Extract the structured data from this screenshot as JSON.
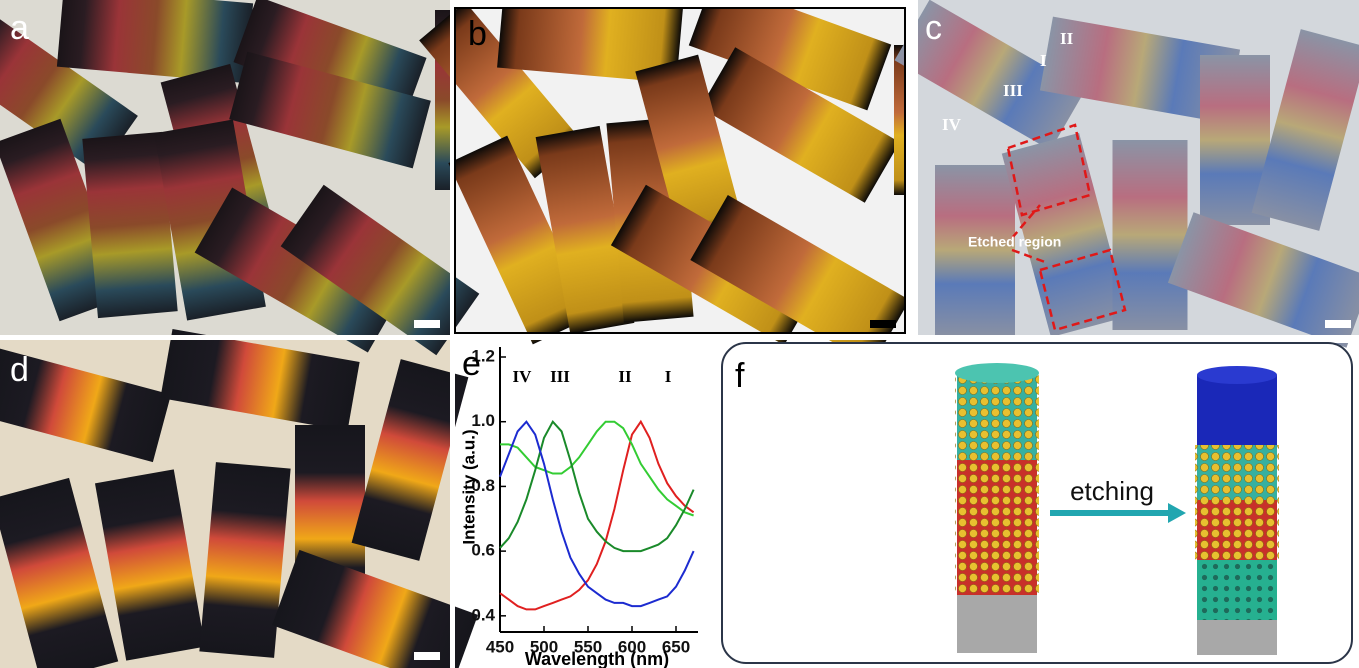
{
  "panels": [
    "a",
    "b",
    "c",
    "d",
    "e",
    "f"
  ],
  "panel_c": {
    "markers": [
      "I",
      "II",
      "III",
      "IV"
    ],
    "callout": "Etched region"
  },
  "panel_f": {
    "arrow_label": "etching"
  },
  "chart_data": {
    "type": "line",
    "annotations": [
      "IV",
      "III",
      "II",
      "I"
    ],
    "x_label": "Wavelength (nm)",
    "y_label": "Intensity (a.u.)",
    "x": [
      450,
      460,
      470,
      480,
      490,
      500,
      510,
      520,
      530,
      540,
      550,
      560,
      570,
      580,
      590,
      600,
      610,
      620,
      630,
      640,
      650,
      660,
      670
    ],
    "series": [
      {
        "color": "#e02020",
        "values": [
          0.47,
          0.45,
          0.43,
          0.42,
          0.42,
          0.43,
          0.44,
          0.45,
          0.46,
          0.48,
          0.51,
          0.56,
          0.63,
          0.73,
          0.85,
          0.96,
          1.0,
          0.95,
          0.87,
          0.81,
          0.77,
          0.74,
          0.72
        ]
      },
      {
        "color": "#33cc33",
        "values": [
          0.93,
          0.93,
          0.92,
          0.89,
          0.86,
          0.85,
          0.84,
          0.84,
          0.86,
          0.89,
          0.93,
          0.97,
          1.0,
          1.0,
          0.98,
          0.93,
          0.87,
          0.83,
          0.79,
          0.76,
          0.74,
          0.72,
          0.71
        ]
      },
      {
        "color": "#1a8a2a",
        "values": [
          0.61,
          0.64,
          0.69,
          0.76,
          0.85,
          0.95,
          1.0,
          0.97,
          0.88,
          0.78,
          0.7,
          0.66,
          0.63,
          0.61,
          0.6,
          0.6,
          0.6,
          0.61,
          0.62,
          0.64,
          0.68,
          0.73,
          0.79
        ]
      },
      {
        "color": "#1c2bd0",
        "values": [
          0.83,
          0.9,
          0.97,
          1.0,
          0.96,
          0.87,
          0.76,
          0.66,
          0.58,
          0.53,
          0.49,
          0.47,
          0.45,
          0.44,
          0.44,
          0.43,
          0.43,
          0.44,
          0.45,
          0.46,
          0.49,
          0.54,
          0.6
        ]
      }
    ],
    "xlim": [
      450,
      675
    ],
    "xticks": [
      450,
      500,
      550,
      600,
      650
    ],
    "ylim": [
      0.35,
      1.2
    ],
    "yticks": [
      0.4,
      0.6,
      0.8,
      {
        "value": 1.0,
        "label": "1.0"
      },
      1.2
    ]
  }
}
